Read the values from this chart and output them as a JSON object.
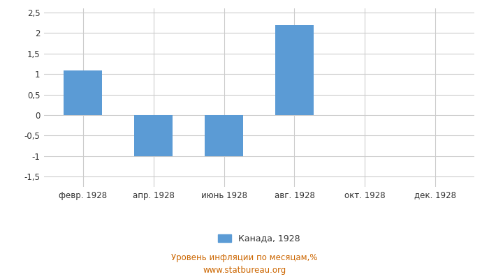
{
  "categories": [
    "февр. 1928",
    "апр. 1928",
    "июнь 1928",
    "авг. 1928",
    "окт. 1928",
    "дек. 1928"
  ],
  "values": [
    1.09,
    -1.01,
    -1.01,
    2.19,
    0,
    0
  ],
  "bar_color": "#5B9BD5",
  "ylim": [
    -1.75,
    2.6
  ],
  "yticks": [
    -1.5,
    -1.0,
    -0.5,
    0,
    0.5,
    1.0,
    1.5,
    2.0,
    2.5
  ],
  "ytick_labels": [
    "-1,5",
    "-1",
    "-0,5",
    "0",
    "0,5",
    "1",
    "1,5",
    "2",
    "2,5"
  ],
  "legend_label": "Канада, 1928",
  "bottom_label": "Уровень инфляции по месяцам,%",
  "website": "www.statbureau.org",
  "background_color": "#ffffff",
  "grid_color": "#cccccc",
  "tick_color": "#333333",
  "text_color_bottom": "#cc6600",
  "bar_width": 0.55
}
